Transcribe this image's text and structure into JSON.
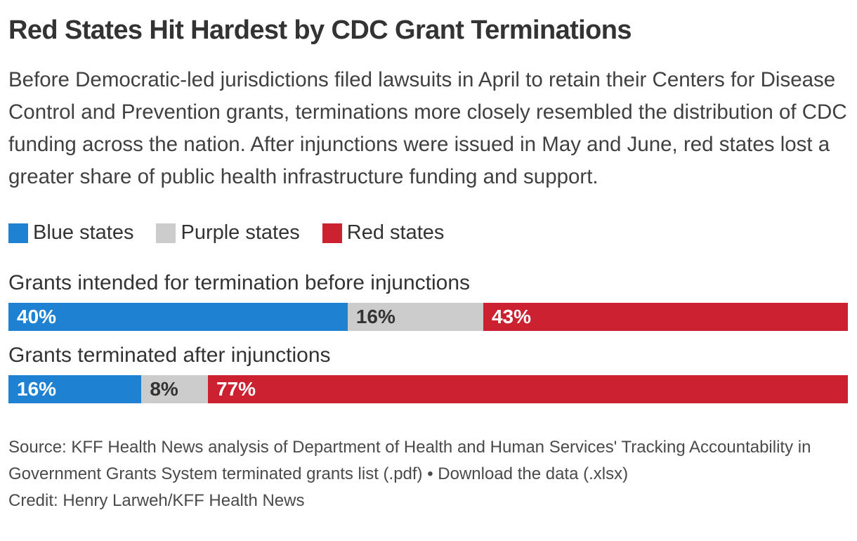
{
  "page": {
    "background": "#ffffff"
  },
  "header": {
    "title": "Red States Hit Hardest by CDC Grant Terminations",
    "description": "Before Democratic-led jurisdictions filed lawsuits in April to retain their Centers for Disease Control and Prevention grants, terminations more closely resembled the distribution of CDC funding across the nation. After injunctions were issued in May and June, red states lost a greater share of public health infrastructure funding and support."
  },
  "chart_data": {
    "type": "bar",
    "orientation": "horizontal",
    "stacked": true,
    "unit": "%",
    "legend_position": "top",
    "categories": [
      "Grants intended for termination before injunctions",
      "Grants terminated after injunctions"
    ],
    "series": [
      {
        "name": "Blue states",
        "color": "#1e81d2",
        "text_color": "#ffffff",
        "values": [
          40,
          16
        ]
      },
      {
        "name": "Purple states",
        "color": "#cccccc",
        "text_color": "#333333",
        "values": [
          16,
          8
        ]
      },
      {
        "name": "Red states",
        "color": "#cb2130",
        "text_color": "#ffffff",
        "values": [
          43,
          77
        ]
      }
    ],
    "data_labels": [
      [
        "40%",
        "16%",
        "43%"
      ],
      [
        "16%",
        "8%",
        "77%"
      ]
    ]
  },
  "footer": {
    "source_prefix": "Source: KFF Health News analysis of Department of Health and Human Services' Tracking Accountability in Government Grants System terminated grants list (.pdf)",
    "separator": " • ",
    "download_text": "Download the data (.xlsx)",
    "credit": "Credit: Henry Larweh/KFF Health News"
  }
}
